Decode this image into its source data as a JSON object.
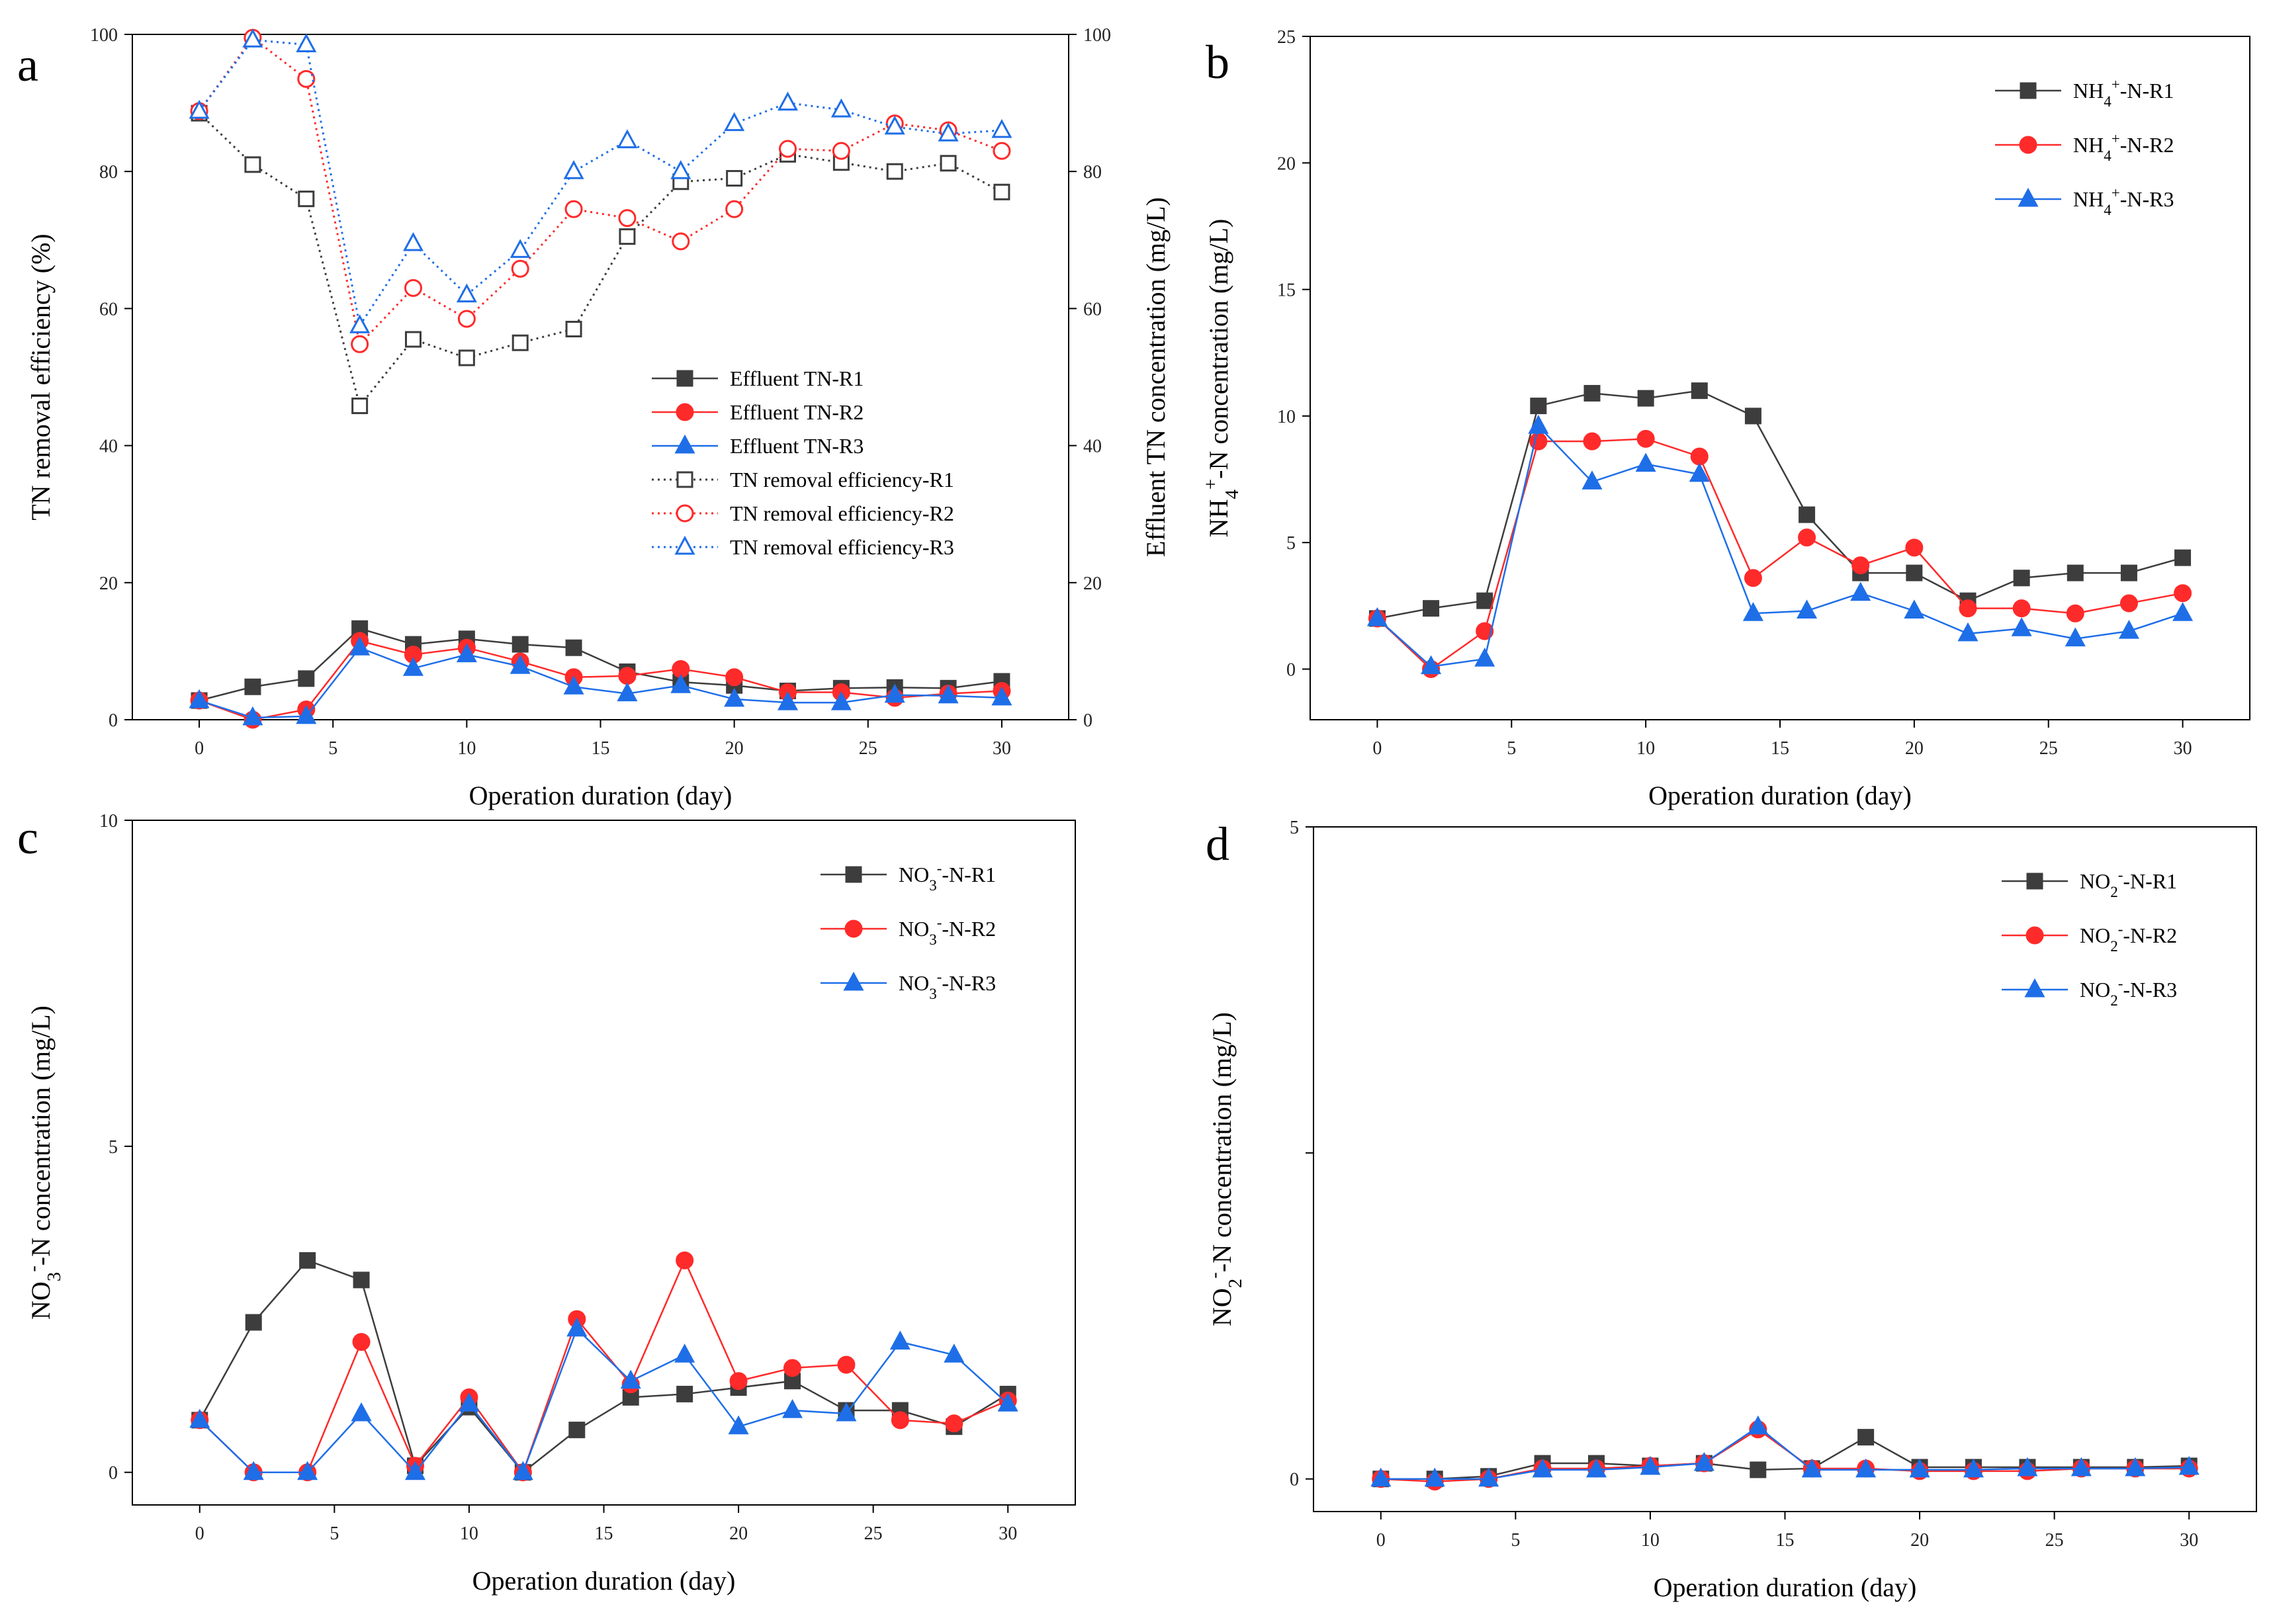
{
  "figure": {
    "colors": {
      "R1": "#3d3d3d",
      "R2": "#ff2a2a",
      "R3": "#1e6ee8"
    }
  },
  "chart_data": [
    {
      "panel": "a",
      "type": "line",
      "xlabel": "Operation duration (day)",
      "ylabel": "TN removal efficiency (%)",
      "ylabel_right": "Effluent TN concentration (mg/L)",
      "xlim": [
        -2.5,
        32.5
      ],
      "ylim": [
        0,
        100
      ],
      "ylim_right": [
        0,
        100
      ],
      "xticks": [
        0,
        5,
        10,
        15,
        20,
        25,
        30
      ],
      "yticks": [
        0,
        20,
        40,
        60,
        80,
        100
      ],
      "yticks_right": [
        0,
        20,
        40,
        60,
        80,
        100
      ],
      "legend_position": "bottom-right",
      "x": [
        0,
        2,
        4,
        6,
        8,
        10,
        12,
        14,
        16,
        18,
        20,
        22,
        24,
        26,
        28,
        30
      ],
      "series": [
        {
          "name": "Effluent TN-R1",
          "color": "R1",
          "marker": "square",
          "filled": true,
          "dashed": false,
          "axis": "right",
          "values": [
            2.8,
            4.8,
            6.0,
            13.3,
            11.0,
            11.8,
            11.0,
            10.5,
            7.0,
            5.5,
            5.0,
            4.2,
            4.6,
            4.7,
            4.6,
            5.6
          ]
        },
        {
          "name": "Effluent TN-R2",
          "color": "R2",
          "marker": "circle",
          "filled": true,
          "dashed": false,
          "axis": "right",
          "values": [
            2.8,
            0.0,
            1.5,
            11.5,
            9.5,
            10.5,
            8.5,
            6.2,
            6.4,
            7.4,
            6.2,
            4.0,
            4.0,
            3.2,
            3.8,
            4.2
          ]
        },
        {
          "name": "Effluent TN-R3",
          "color": "R3",
          "marker": "triangle",
          "filled": true,
          "dashed": false,
          "axis": "right",
          "values": [
            2.8,
            0.3,
            0.5,
            10.5,
            7.5,
            9.5,
            7.8,
            4.8,
            3.8,
            5.0,
            3.0,
            2.5,
            2.5,
            3.6,
            3.5,
            3.2
          ]
        },
        {
          "name": "TN removal efficiency-R1",
          "color": "R1",
          "marker": "square",
          "filled": false,
          "dashed": true,
          "axis": "left",
          "values": [
            88.5,
            81.0,
            76.0,
            45.8,
            55.5,
            52.8,
            55.0,
            57.0,
            70.5,
            78.5,
            79.0,
            82.5,
            81.3,
            80.0,
            81.2,
            77.0
          ]
        },
        {
          "name": "TN removal efficiency-R2",
          "color": "R2",
          "marker": "circle",
          "filled": false,
          "dashed": true,
          "axis": "left",
          "values": [
            88.8,
            99.5,
            93.5,
            54.8,
            63.0,
            58.5,
            65.8,
            74.5,
            73.2,
            69.8,
            74.5,
            83.3,
            83.0,
            87.0,
            86.0,
            83.0
          ]
        },
        {
          "name": "TN removal efficiency-R3",
          "color": "R3",
          "marker": "triangle",
          "filled": false,
          "dashed": true,
          "axis": "left",
          "values": [
            88.8,
            99.2,
            98.5,
            57.5,
            69.5,
            62.0,
            68.5,
            80.0,
            84.5,
            80.0,
            87.0,
            90.0,
            89.0,
            86.5,
            85.5,
            86.0
          ]
        }
      ]
    },
    {
      "panel": "b",
      "type": "line",
      "xlabel": "Operation duration (day)",
      "ylabel": "concentration (mg/L)",
      "ylabel_prefix": "NH",
      "ylabel_sub": "4",
      "ylabel_sup": "+",
      "ylabel_suffix": "-N ",
      "xlim": [
        -2.5,
        32.5
      ],
      "ylim": [
        -2,
        25
      ],
      "xticks": [
        0,
        5,
        10,
        15,
        20,
        25,
        30
      ],
      "yticks": [
        0,
        5,
        10,
        15,
        20,
        25
      ],
      "legend_position": "top-right",
      "x": [
        0,
        2,
        4,
        6,
        8,
        10,
        12,
        14,
        16,
        18,
        20,
        22,
        24,
        26,
        28,
        30
      ],
      "series": [
        {
          "name": "NH4+-N-R1",
          "label_prefix": "NH",
          "label_sub": "4",
          "label_sup": "+",
          "label_suffix": "-N-R1",
          "color": "R1",
          "marker": "square",
          "values": [
            2.0,
            2.4,
            2.7,
            10.4,
            10.9,
            10.7,
            11.0,
            10.0,
            6.1,
            3.8,
            3.8,
            2.7,
            3.6,
            3.8,
            3.8,
            4.4
          ]
        },
        {
          "name": "NH4+-N-R2",
          "label_prefix": "NH",
          "label_sub": "4",
          "label_sup": "+",
          "label_suffix": "-N-R2",
          "color": "R2",
          "marker": "circle",
          "values": [
            2.0,
            0.0,
            1.5,
            9.0,
            9.0,
            9.1,
            8.4,
            3.6,
            5.2,
            4.1,
            4.8,
            2.4,
            2.4,
            2.2,
            2.6,
            3.0
          ]
        },
        {
          "name": "NH4+-N-R3",
          "label_prefix": "NH",
          "label_sub": "4",
          "label_sup": "+",
          "label_suffix": "-N-R3",
          "color": "R3",
          "marker": "triangle",
          "values": [
            2.0,
            0.1,
            0.4,
            9.6,
            7.4,
            8.1,
            7.7,
            2.2,
            2.3,
            3.0,
            2.3,
            1.4,
            1.6,
            1.2,
            1.5,
            2.2
          ]
        }
      ]
    },
    {
      "panel": "c",
      "type": "line",
      "xlabel": "Operation duration (day)",
      "ylabel": "-N concentration (mg/L)",
      "ylabel_prefix": "NO",
      "ylabel_sub": "3",
      "ylabel_sup": "-",
      "xlim": [
        -2.5,
        32.5
      ],
      "ylim": [
        -0.5,
        10
      ],
      "xticks": [
        0,
        5,
        10,
        15,
        20,
        25,
        30
      ],
      "yticks": [
        0,
        5,
        10
      ],
      "legend_position": "top-right",
      "x": [
        0,
        2,
        4,
        6,
        8,
        10,
        12,
        14,
        16,
        18,
        20,
        22,
        24,
        26,
        28,
        30
      ],
      "series": [
        {
          "name": "NO3--N-R1",
          "label_prefix": "NO",
          "label_sub": "3",
          "label_sup": "-",
          "label_suffix": "-N-R1",
          "color": "R1",
          "marker": "square",
          "values": [
            0.8,
            2.3,
            3.25,
            2.95,
            0.1,
            1.0,
            0.0,
            0.65,
            1.15,
            1.2,
            1.3,
            1.4,
            0.95,
            0.95,
            0.7,
            1.2
          ]
        },
        {
          "name": "NO3--N-R2",
          "label_prefix": "NO",
          "label_sub": "3",
          "label_sup": "-",
          "label_suffix": "-N-R2",
          "color": "R2",
          "marker": "circle",
          "values": [
            0.8,
            0.0,
            0.0,
            2.0,
            0.1,
            1.15,
            0.0,
            2.35,
            1.35,
            3.25,
            1.4,
            1.6,
            1.65,
            0.8,
            0.75,
            1.1
          ]
        },
        {
          "name": "NO3--N-R3",
          "label_prefix": "NO",
          "label_sub": "3",
          "label_sup": "-",
          "label_suffix": "-N-R3",
          "color": "R3",
          "marker": "triangle",
          "values": [
            0.8,
            0.0,
            0.0,
            0.9,
            0.0,
            1.05,
            0.0,
            2.2,
            1.4,
            1.8,
            0.7,
            0.95,
            0.9,
            2.0,
            1.8,
            1.05
          ]
        }
      ]
    },
    {
      "panel": "d",
      "type": "line",
      "xlabel": "Operation duration (day)",
      "ylabel": "-N concentration (mg/L)",
      "ylabel_prefix": "NO",
      "ylabel_sub": "2",
      "ylabel_sup": "-",
      "xlim": [
        -2.5,
        32.5
      ],
      "ylim": [
        -0.25,
        5
      ],
      "xticks": [
        0,
        5,
        10,
        15,
        20,
        25,
        30
      ],
      "yticks": [
        0,
        5
      ],
      "yticks_unlabeled": [
        2.5
      ],
      "legend_position": "top-right",
      "x": [
        0,
        2,
        4,
        6,
        8,
        10,
        12,
        14,
        16,
        18,
        20,
        22,
        24,
        26,
        28,
        30
      ],
      "series": [
        {
          "name": "NO2--N-R1",
          "label_prefix": "NO",
          "label_sub": "2",
          "label_sup": "-",
          "label_suffix": "-N-R1",
          "color": "R1",
          "marker": "square",
          "values": [
            0.0,
            0.0,
            0.02,
            0.12,
            0.12,
            0.1,
            0.12,
            0.07,
            0.08,
            0.32,
            0.09,
            0.09,
            0.09,
            0.09,
            0.09,
            0.1
          ]
        },
        {
          "name": "NO2--N-R2",
          "label_prefix": "NO",
          "label_sub": "2",
          "label_sup": "-",
          "label_suffix": "-N-R2",
          "color": "R2",
          "marker": "circle",
          "values": [
            0.0,
            -0.02,
            0.0,
            0.08,
            0.08,
            0.1,
            0.12,
            0.38,
            0.08,
            0.08,
            0.06,
            0.06,
            0.06,
            0.08,
            0.08,
            0.08
          ]
        },
        {
          "name": "NO2--N-R3",
          "label_prefix": "NO",
          "label_sub": "2",
          "label_sup": "-",
          "label_suffix": "-N-R3",
          "color": "R3",
          "marker": "triangle",
          "values": [
            0.0,
            0.0,
            0.0,
            0.07,
            0.07,
            0.09,
            0.12,
            0.4,
            0.07,
            0.07,
            0.07,
            0.07,
            0.08,
            0.08,
            0.08,
            0.09
          ]
        }
      ]
    }
  ]
}
